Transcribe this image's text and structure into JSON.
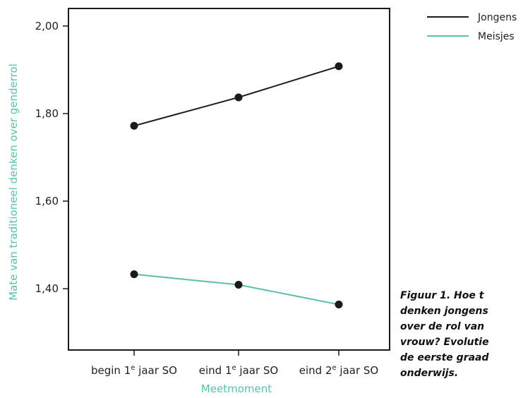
{
  "chart_data": {
    "type": "line",
    "categories": [
      "begin 1e jaar SO",
      "eind 1e jaar SO",
      "eind 2e jaar SO"
    ],
    "category_labels": [
      {
        "pre": "begin 1",
        "sup": "e",
        "post": " jaar SO"
      },
      {
        "pre": "eind 1",
        "sup": "e",
        "post": " jaar SO"
      },
      {
        "pre": "eind 2",
        "sup": "e",
        "post": " jaar SO"
      }
    ],
    "series": [
      {
        "name": "Jongens",
        "color": "#1a1a1a",
        "values": [
          1.772,
          1.837,
          1.908
        ]
      },
      {
        "name": "Meisjes",
        "color": "#5cbfad",
        "values": [
          1.433,
          1.409,
          1.364
        ]
      }
    ],
    "xlabel": "Meetmoment",
    "ylabel": "Mate van traditioneel denken over genderrol",
    "ylim": [
      1.26,
      2.04
    ],
    "yticks": [
      2.0,
      1.8,
      1.6,
      1.4
    ],
    "ytick_labels": [
      "2,00",
      "1,80",
      "1,60",
      "1,40"
    ],
    "grid": false,
    "legend_position": "top-right"
  },
  "caption": "Figuur 1. Hoe t\ndenken jongens\nover de rol van\nvrouw? Evolutie\nde eerste graad\nonderwijs."
}
